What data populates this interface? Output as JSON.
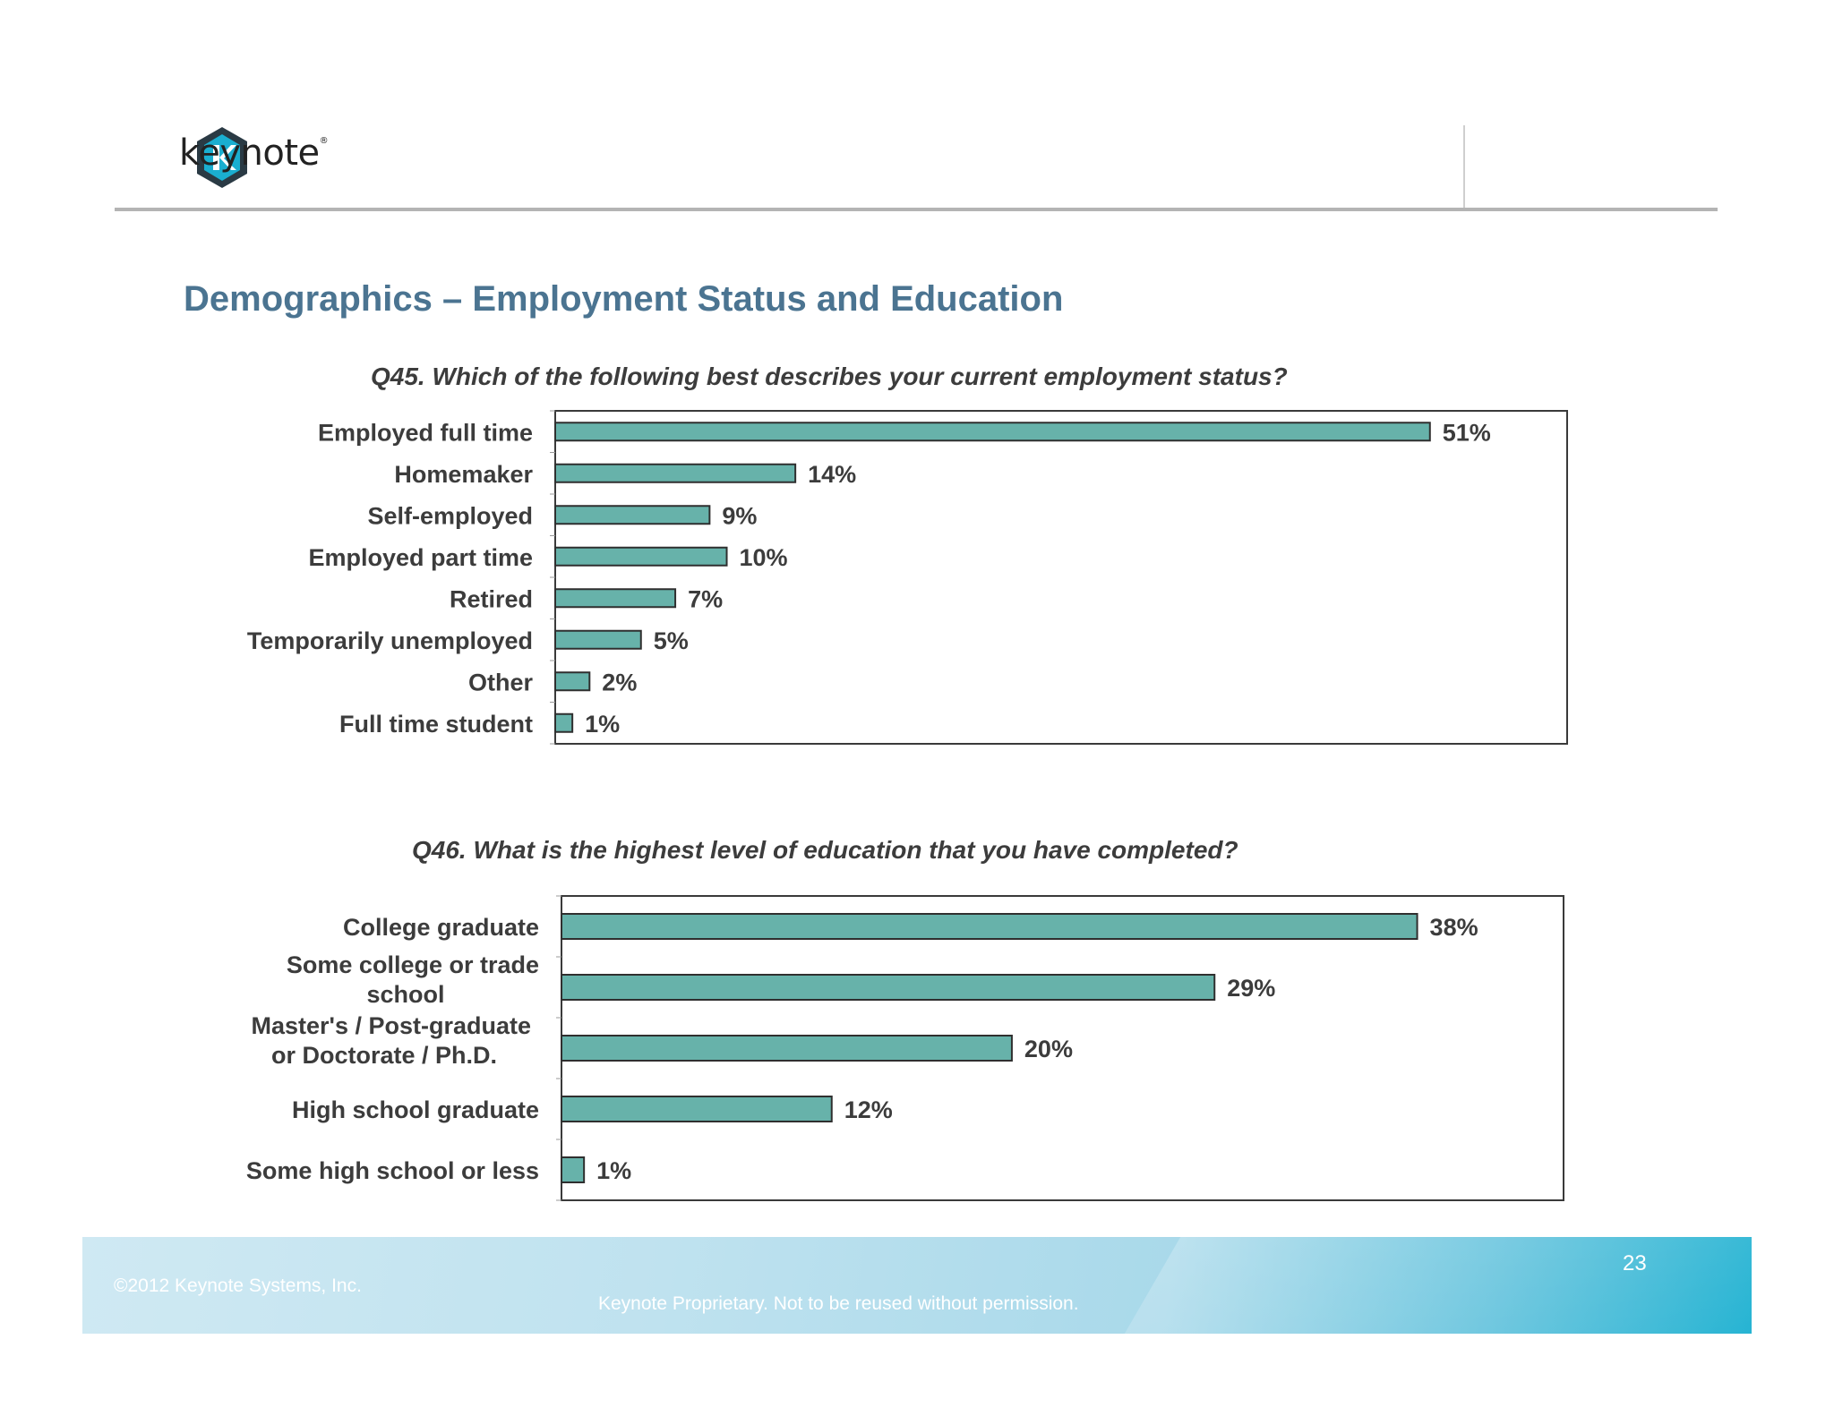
{
  "brand": {
    "logo_text": "keynote",
    "colors": {
      "logo_blue": "#1aaed0",
      "logo_dark": "#2a3a44",
      "title_blue": "#4b7491",
      "bar_fill": "#67b2aa",
      "bar_stroke": "#2f2f2f"
    }
  },
  "page": {
    "title": "Demographics – Employment Status and Education"
  },
  "chart_data": [
    {
      "type": "bar",
      "orientation": "horizontal",
      "title": "Q45. Which of the following best describes your current employment status?",
      "categories": [
        "Employed full time",
        "Homemaker",
        "Self-employed",
        "Employed part time",
        "Retired",
        "Temporarily unemployed",
        "Other",
        "Full time student"
      ],
      "values": [
        51,
        14,
        9,
        10,
        7,
        5,
        2,
        1
      ],
      "value_labels": [
        "51%",
        "14%",
        "9%",
        "10%",
        "7%",
        "5%",
        "2%",
        "1%"
      ],
      "unit": "%",
      "xlim": [
        0,
        59
      ],
      "grid": false,
      "legend": "none"
    },
    {
      "type": "bar",
      "orientation": "horizontal",
      "title": "Q46. What is the highest level of education that you have completed?",
      "categories": [
        "College graduate",
        "Some college or trade school",
        "Master's / Post-graduate or Doctorate / Ph.D.",
        "High school graduate",
        "Some high school or less"
      ],
      "category_lines": [
        [
          "College graduate"
        ],
        [
          "Some college or trade",
          "school"
        ],
        [
          "Master's / Post-graduate",
          "or Doctorate / Ph.D."
        ],
        [
          "High school graduate"
        ],
        [
          "Some high school or less"
        ]
      ],
      "values": [
        38,
        29,
        20,
        12,
        1
      ],
      "value_labels": [
        "38%",
        "29%",
        "20%",
        "12%",
        "1%"
      ],
      "unit": "%",
      "xlim": [
        0,
        44.5
      ],
      "grid": false,
      "legend": "none"
    }
  ],
  "footer": {
    "copyright": "©2012 Keynote Systems, Inc.",
    "notice": "Keynote Proprietary. Not to be reused without permission.",
    "page_number": "23"
  }
}
